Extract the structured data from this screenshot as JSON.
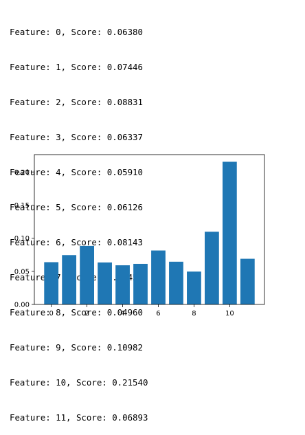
{
  "output_lines": [
    "Feature: 0, Score: 0.06380",
    "Feature: 1, Score: 0.07446",
    "Feature: 2, Score: 0.08831",
    "Feature: 3, Score: 0.06337",
    "Feature: 4, Score: 0.05910",
    "Feature: 5, Score: 0.06126",
    "Feature: 6, Score: 0.08143",
    "Feature: 7, Score: 0.06451",
    "Feature: 8, Score: 0.04960",
    "Feature: 9, Score: 0.10982",
    "Feature: 10, Score: 0.21540",
    "Feature: 11, Score: 0.06893"
  ],
  "chart_data": {
    "type": "bar",
    "x": [
      0,
      1,
      2,
      3,
      4,
      5,
      6,
      7,
      8,
      9,
      10,
      11
    ],
    "values": [
      0.0638,
      0.07446,
      0.08831,
      0.06337,
      0.0591,
      0.06126,
      0.08143,
      0.06451,
      0.0496,
      0.10982,
      0.2154,
      0.06893
    ],
    "xticks": [
      "0",
      "2",
      "4",
      "6",
      "8",
      "10"
    ],
    "yticks": [
      "0.00",
      "0.05",
      "0.10",
      "0.15",
      "0.20"
    ],
    "ylim": [
      0,
      0.2262
    ],
    "xlim": [
      -0.95,
      11.95
    ],
    "bar_color": "#1f77b4",
    "grid": false,
    "title": "",
    "xlabel": "",
    "ylabel": ""
  }
}
